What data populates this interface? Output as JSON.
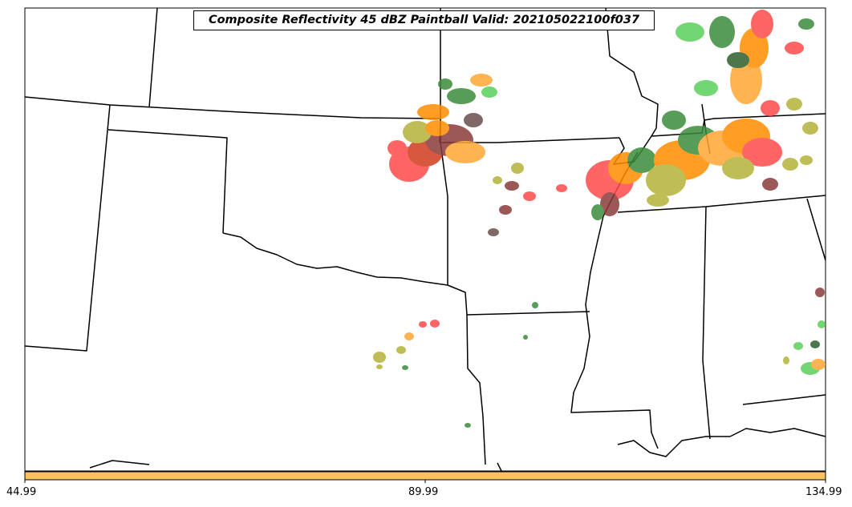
{
  "title": "Composite Reflectivity 45 dBZ Paintball Valid: 202105022100f037",
  "colorbar": {
    "color": "#fdc160",
    "ticks": [
      "44.99",
      "89.99",
      "134.99"
    ]
  },
  "member_colors": [
    "#ff4b4b",
    "#ff8c00",
    "#ffa733",
    "#b5b238",
    "#3a8b3a",
    "#5ad05a",
    "#8b3a3a",
    "#d23a1e",
    "#2f5f2f",
    "#6b4e4e"
  ]
}
